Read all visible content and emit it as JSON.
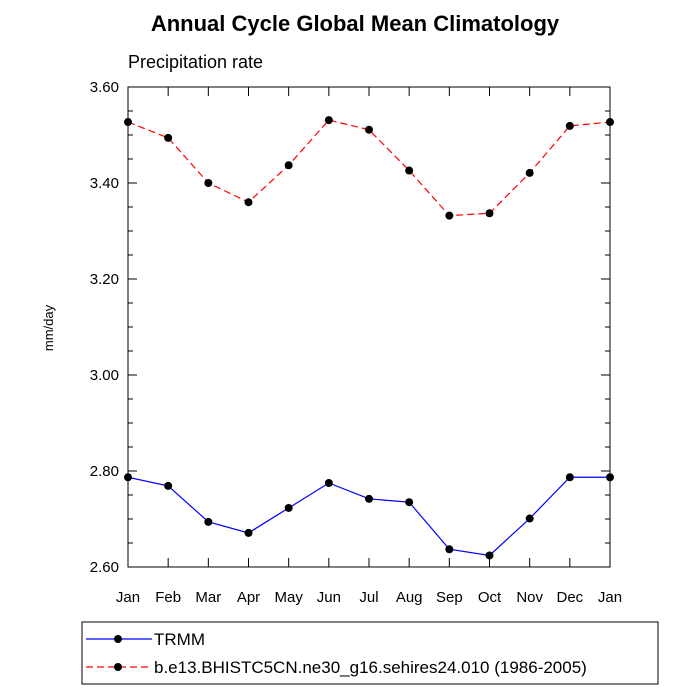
{
  "chart_data": {
    "type": "line",
    "title": "Annual Cycle Global Mean Climatology",
    "subtitle": "Precipitation rate",
    "xlabel": "",
    "ylabel": "mm/day",
    "categories": [
      "Jan",
      "Feb",
      "Mar",
      "Apr",
      "May",
      "Jun",
      "Jul",
      "Aug",
      "Sep",
      "Oct",
      "Nov",
      "Dec",
      "Jan"
    ],
    "ylim": [
      2.6,
      3.6
    ],
    "yticks": [
      "2.60",
      "2.80",
      "3.00",
      "3.20",
      "3.40",
      "3.60"
    ],
    "grid": false,
    "legend_position": "bottom",
    "series": [
      {
        "name": "TRMM",
        "color": "#0000ff",
        "dash": "solid",
        "marker": "filled-circle",
        "values": [
          2.787,
          2.769,
          2.694,
          2.671,
          2.723,
          2.775,
          2.742,
          2.735,
          2.637,
          2.624,
          2.701,
          2.787,
          2.787
        ]
      },
      {
        "name": "b.e13.BHISTC5CN.ne30_g16.sehires24.010 (1986-2005)",
        "color": "#ff0000",
        "dash": "dashed",
        "marker": "filled-circle",
        "values": [
          3.527,
          3.494,
          3.4,
          3.36,
          3.437,
          3.531,
          3.511,
          3.426,
          3.332,
          3.337,
          3.421,
          3.519,
          3.527
        ]
      }
    ]
  }
}
